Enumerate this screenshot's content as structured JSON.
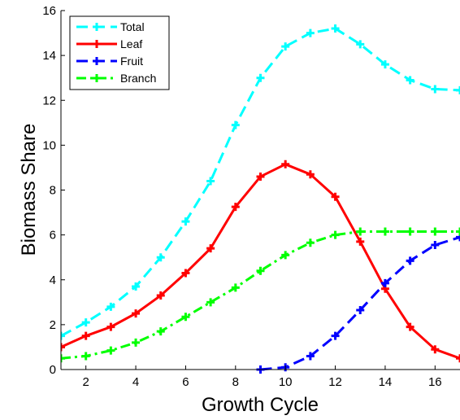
{
  "chart_data": {
    "type": "line",
    "title": "",
    "xlabel": "Growth Cycle",
    "ylabel": "Biomass Share",
    "xlim": [
      1,
      17
    ],
    "ylim": [
      0,
      16
    ],
    "xticks": [
      2,
      4,
      6,
      8,
      10,
      12,
      14,
      16
    ],
    "yticks": [
      0,
      2,
      4,
      6,
      8,
      10,
      12,
      14,
      16
    ],
    "grid": false,
    "legend_position": "top-left",
    "series": [
      {
        "name": "Total",
        "color": "#00FFFF",
        "line_style": "dashed",
        "marker": "plus",
        "x": [
          1,
          2,
          3,
          4,
          5,
          6,
          7,
          8,
          9,
          10,
          11,
          12,
          13,
          14,
          15,
          16,
          17
        ],
        "values": [
          1.5,
          2.1,
          2.8,
          3.7,
          5.0,
          6.6,
          8.4,
          10.9,
          13.0,
          14.4,
          15.0,
          15.2,
          14.5,
          13.6,
          12.9,
          12.5,
          12.45
        ]
      },
      {
        "name": "Leaf",
        "color": "#FF0000",
        "line_style": "solid",
        "marker": "plus",
        "x": [
          1,
          2,
          3,
          4,
          5,
          6,
          7,
          8,
          9,
          10,
          11,
          12,
          13,
          14,
          15,
          16,
          17
        ],
        "values": [
          1.0,
          1.5,
          1.9,
          2.5,
          3.3,
          4.3,
          5.4,
          7.25,
          8.6,
          9.15,
          8.7,
          7.7,
          5.7,
          3.6,
          1.9,
          0.9,
          0.5
        ]
      },
      {
        "name": "Fruit",
        "color": "#0000FF",
        "line_style": "dashed",
        "marker": "plus",
        "x": [
          9,
          10,
          11,
          12,
          13,
          14,
          15,
          16,
          17
        ],
        "values": [
          0.0,
          0.1,
          0.6,
          1.5,
          2.65,
          3.85,
          4.85,
          5.55,
          5.9
        ]
      },
      {
        "name": "Branch",
        "color": "#00FF00",
        "line_style": "dash-dot",
        "marker": "plus",
        "x": [
          1,
          2,
          3,
          4,
          5,
          6,
          7,
          8,
          9,
          10,
          11,
          12,
          13,
          14,
          15,
          16,
          17
        ],
        "values": [
          0.5,
          0.6,
          0.85,
          1.2,
          1.7,
          2.35,
          3.0,
          3.65,
          4.4,
          5.1,
          5.65,
          6.0,
          6.15,
          6.15,
          6.15,
          6.15,
          6.15
        ]
      }
    ]
  }
}
